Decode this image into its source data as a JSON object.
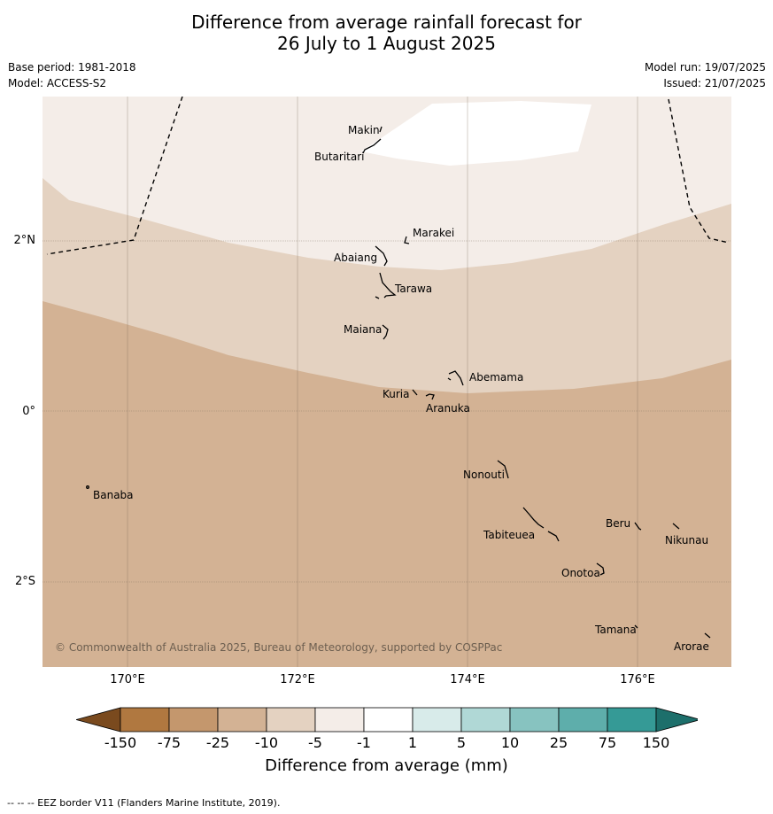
{
  "title": {
    "line1": "Difference from average rainfall forecast for",
    "line2": "26 July to 1 August 2025"
  },
  "meta": {
    "base_period": "Base period: 1981-2018",
    "model": "Model: ACCESS-S2",
    "model_run": "Model run: 19/07/2025",
    "issued": "Issued: 21/07/2025"
  },
  "map": {
    "lat_labels": [
      "2°N",
      "0°",
      "2°S"
    ],
    "lon_labels": [
      "170°E",
      "172°E",
      "174°E",
      "176°E"
    ],
    "places": [
      "Makin",
      "Butaritari",
      "Marakei",
      "Abaiang",
      "Tarawa",
      "Maiana",
      "Abemama",
      "Kuria",
      "Aranuka",
      "Nonouti",
      "Banaba",
      "Beru",
      "Nikunau",
      "Tabiteuea",
      "Onotoa",
      "Tamana",
      "Arorae"
    ],
    "copyright": "© Commonwealth of Australia 2025, Bureau of Meteorology, supported by COSPPac"
  },
  "colorbar": {
    "ticks": [
      "-150",
      "-75",
      "-25",
      "-10",
      "-5",
      "-1",
      "1",
      "5",
      "10",
      "25",
      "75",
      "150"
    ],
    "colors": [
      "#7a4a1e",
      "#b07840",
      "#c4976d",
      "#d3b294",
      "#e4d2c1",
      "#f4ede8",
      "#ffffff",
      "#d8ebea",
      "#b0d8d6",
      "#87c3c0",
      "#5eaeab",
      "#359a96",
      "#1d6f6b"
    ],
    "units_label": "Difference from average (mm)"
  },
  "footer": "--  --  -- EEZ border V11 (Flanders Marine Institute, 2019)."
}
